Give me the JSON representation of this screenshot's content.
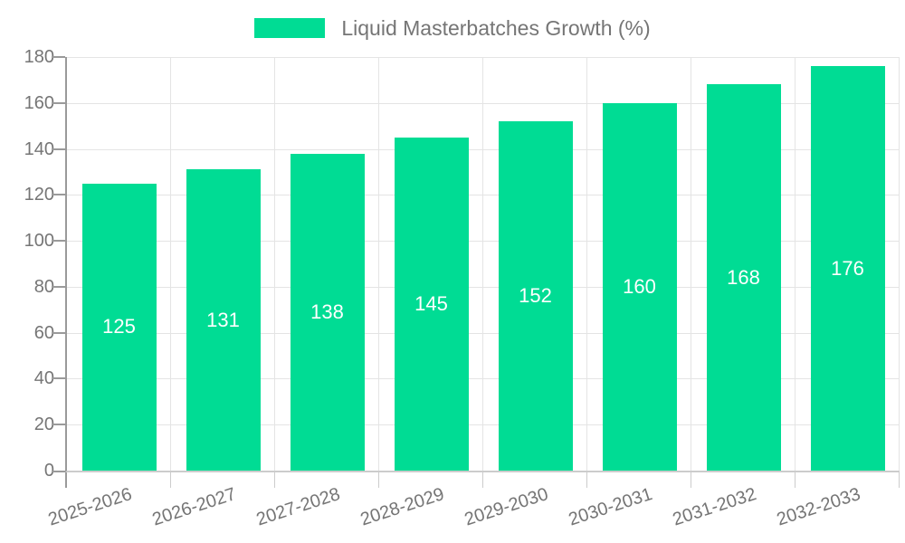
{
  "legend": {
    "label": "Liquid Masterbatches Growth (%)"
  },
  "chart_data": {
    "type": "bar",
    "title": "Liquid Masterbatches Growth (%)",
    "categories": [
      "2025-2026",
      "2026-2027",
      "2027-2028",
      "2028-2029",
      "2029-2030",
      "2030-2031",
      "2031-2032",
      "2032-2033"
    ],
    "values": [
      125,
      131,
      138,
      145,
      152,
      160,
      168,
      176
    ],
    "xlabel": "",
    "ylabel": "",
    "ylim": [
      0,
      180
    ],
    "ytick_step": 20,
    "grid": true,
    "legend_position": "top",
    "bar_labels_inside": true,
    "colors": {
      "bar": "#00dc94",
      "bar_label": "#ffffff",
      "axis_text": "#757575",
      "gridline": "#e4e4e4",
      "y_axis_line": "#9a9a9a",
      "x_axis_line": "#cccccc"
    }
  }
}
